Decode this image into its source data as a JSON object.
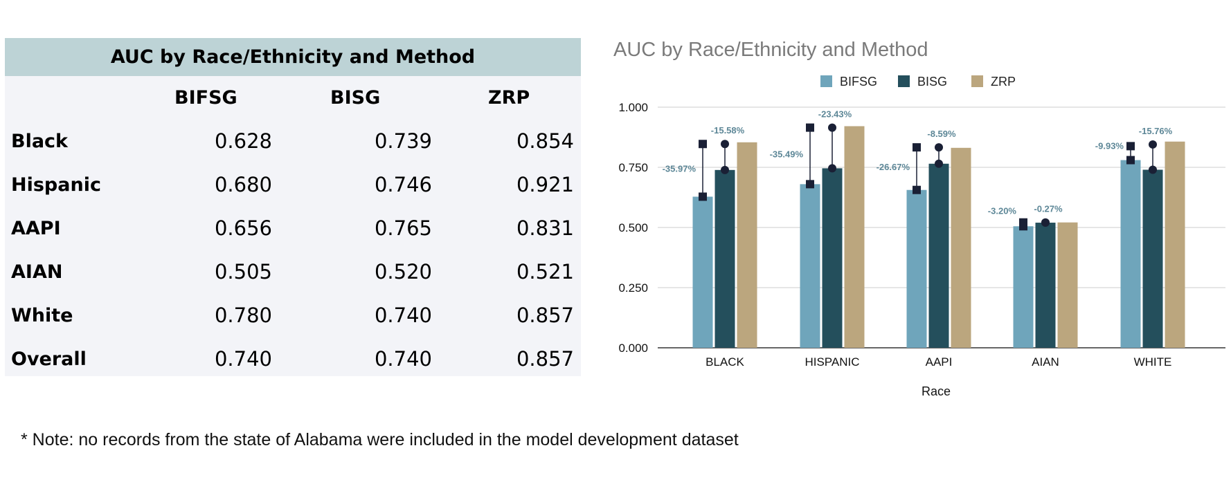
{
  "table": {
    "title": "AUC by Race/Ethnicity and Method",
    "columns": [
      "BIFSG",
      "BISG",
      "ZRP"
    ],
    "rows": [
      {
        "label": "Black",
        "values": [
          "0.628",
          "0.739",
          "0.854"
        ]
      },
      {
        "label": "Hispanic",
        "values": [
          "0.680",
          "0.746",
          "0.921"
        ]
      },
      {
        "label": "AAPI",
        "values": [
          "0.656",
          "0.765",
          "0.831"
        ]
      },
      {
        "label": "AIAN",
        "values": [
          "0.505",
          "0.520",
          "0.521"
        ]
      },
      {
        "label": "White",
        "values": [
          "0.780",
          "0.740",
          "0.857"
        ]
      },
      {
        "label": "Overall",
        "values": [
          "0.740",
          "0.740",
          "0.857"
        ]
      }
    ]
  },
  "chart_data": {
    "type": "bar",
    "title": "AUC by Race/Ethnicity and Method",
    "xlabel": "Race",
    "ylabel": "",
    "categories": [
      "BLACK",
      "HISPANIC",
      "AAPI",
      "AIAN",
      "WHITE"
    ],
    "ylim": [
      0,
      1
    ],
    "yticks": [
      "0.000",
      "0.250",
      "0.500",
      "0.750",
      "1.000"
    ],
    "grid": true,
    "legend_position": "top",
    "series": [
      {
        "name": "BIFSG",
        "color": "#6fa5bb",
        "values": [
          0.628,
          0.68,
          0.656,
          0.505,
          0.78
        ]
      },
      {
        "name": "BISG",
        "color": "#244f5c",
        "values": [
          0.739,
          0.746,
          0.765,
          0.52,
          0.74
        ]
      },
      {
        "name": "ZRP",
        "color": "#bba67e",
        "values": [
          0.854,
          0.921,
          0.831,
          0.521,
          0.857
        ]
      }
    ],
    "annotations": [
      {
        "category": "BLACK",
        "series": "BIFSG",
        "label": "-35.97%",
        "marker_value": 0.847,
        "marker": "square"
      },
      {
        "category": "BLACK",
        "series": "BISG",
        "label": "-15.58%",
        "marker_value": 0.847,
        "marker": "circle"
      },
      {
        "category": "HISPANIC",
        "series": "BIFSG",
        "label": "-35.49%",
        "marker_value": 0.915,
        "marker": "square"
      },
      {
        "category": "HISPANIC",
        "series": "BISG",
        "label": "-23.43%",
        "marker_value": 0.915,
        "marker": "circle"
      },
      {
        "category": "AAPI",
        "series": "BIFSG",
        "label": "-26.67%",
        "marker_value": 0.833,
        "marker": "square"
      },
      {
        "category": "AAPI",
        "series": "BISG",
        "label": "-8.59%",
        "marker_value": 0.833,
        "marker": "circle"
      },
      {
        "category": "AIAN",
        "series": "BIFSG",
        "label": "-3.20%",
        "marker_value": 0.521,
        "marker": "square"
      },
      {
        "category": "AIAN",
        "series": "BISG",
        "label": "-0.27%",
        "marker_value": 0.521,
        "marker": "circle"
      },
      {
        "category": "WHITE",
        "series": "BIFSG",
        "label": "-9.93%",
        "marker_value": 0.838,
        "marker": "square"
      },
      {
        "category": "WHITE",
        "series": "BISG",
        "label": "-15.76%",
        "marker_value": 0.845,
        "marker": "circle"
      }
    ]
  },
  "colors": {
    "table_header_bg": "#bdd3d6",
    "table_body_bg": "#f3f4f8",
    "annotation_text": "#5d8797",
    "marker": "#1a2035"
  },
  "note": "* Note:  no records from the state of Alabama were included in the model development dataset"
}
